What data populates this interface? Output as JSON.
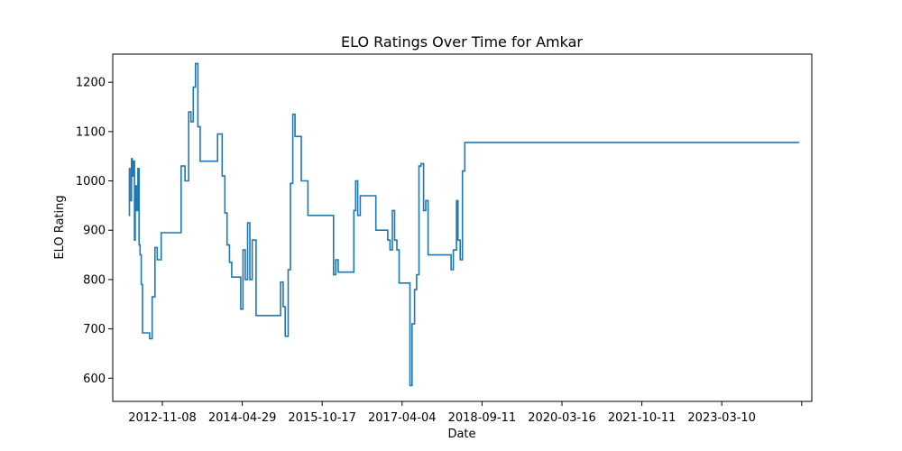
{
  "chart_data": {
    "type": "line",
    "title": "ELO Ratings Over Time for Amkar",
    "xlabel": "Date",
    "ylabel": "ELO Rating",
    "x_ticks": [
      "2012-11-08",
      "2014-04-29",
      "2015-10-17",
      "2017-04-04",
      "2018-09-11",
      "2020-03-16",
      "2021-10-11",
      "2023-03-10",
      ""
    ],
    "y_ticks": [
      600,
      700,
      800,
      900,
      1000,
      1100,
      1200
    ],
    "xlim": [
      "2012-02-10",
      "2024-12-25"
    ],
    "ylim": [
      553,
      1257
    ],
    "grid": false,
    "line_style": "steps",
    "line_color": "#1f77b4",
    "series": [
      {
        "x": [
          "2012-05-28",
          "2012-06-01",
          "2012-06-05",
          "2012-06-15",
          "2012-06-20",
          "2012-06-26",
          "2012-07-05",
          "2012-07-10",
          "2012-07-20",
          "2012-07-28",
          "2012-08-05",
          "2012-08-12",
          "2012-08-20",
          "2012-08-28",
          "2012-09-05",
          "2012-09-12",
          "2012-09-20",
          "2012-10-01",
          "2012-10-15",
          "2012-11-01",
          "2012-11-20",
          "2012-12-05",
          "2013-01-01",
          "2013-04-01",
          "2013-05-15",
          "2013-06-10",
          "2013-07-05",
          "2013-07-20",
          "2013-08-05",
          "2013-08-20",
          "2013-09-05",
          "2013-09-20",
          "2013-10-05",
          "2013-10-20",
          "2013-11-05",
          "2013-12-01",
          "2014-01-15",
          "2014-02-15",
          "2014-03-05",
          "2014-03-20",
          "2014-04-05",
          "2014-04-20",
          "2014-05-05",
          "2014-05-20",
          "2014-06-05",
          "2014-06-20",
          "2014-07-05",
          "2014-07-20",
          "2014-08-05",
          "2014-08-20",
          "2014-09-05",
          "2014-10-01",
          "2014-11-01",
          "2014-12-01",
          "2015-03-01",
          "2015-03-15",
          "2015-04-01",
          "2015-04-15",
          "2015-05-05",
          "2015-05-20",
          "2015-06-05",
          "2015-06-20",
          "2015-07-05",
          "2015-08-01",
          "2015-09-15",
          "2015-11-01",
          "2016-03-05",
          "2016-03-20",
          "2016-04-05",
          "2016-04-20",
          "2016-05-05",
          "2016-05-20",
          "2016-07-20",
          "2016-08-01",
          "2016-08-15",
          "2016-09-01",
          "2016-09-20",
          "2016-10-05",
          "2016-10-20",
          "2016-11-05",
          "2016-11-20",
          "2016-12-15",
          "2017-03-05",
          "2017-03-20",
          "2017-04-05",
          "2017-04-20",
          "2017-05-05",
          "2017-05-20",
          "2017-06-05",
          "2017-07-01",
          "2017-08-01",
          "2017-08-15",
          "2017-09-01",
          "2017-09-15",
          "2017-10-01",
          "2017-10-15",
          "2017-11-01",
          "2017-11-15",
          "2017-12-01",
          "2018-03-05",
          "2018-03-20",
          "2018-04-05",
          "2018-04-20",
          "2018-05-05",
          "2018-05-20",
          "2018-06-10",
          "2018-06-20",
          "2018-07-05",
          "2018-07-20",
          "2018-08-05",
          "2018-08-15",
          "2024-10-01"
        ],
        "y": [
          930,
          1025,
          960,
          1045,
          1010,
          1040,
          880,
          990,
          940,
          1025,
          870,
          850,
          790,
          692,
          692,
          692,
          692,
          692,
          680,
          765,
          865,
          840,
          895,
          895,
          1030,
          1000,
          1140,
          1120,
          1190,
          1238,
          1110,
          1040,
          1040,
          1040,
          1040,
          1040,
          1095,
          1010,
          935,
          870,
          835,
          805,
          805,
          805,
          805,
          740,
          860,
          800,
          915,
          800,
          880,
          727,
          727,
          727,
          727,
          795,
          745,
          685,
          820,
          995,
          1135,
          1090,
          1090,
          1000,
          930,
          930,
          810,
          840,
          815,
          815,
          815,
          815,
          940,
          1000,
          930,
          970,
          970,
          970,
          970,
          970,
          970,
          900,
          880,
          860,
          940,
          880,
          860,
          793,
          793,
          793,
          585,
          710,
          780,
          810,
          1030,
          1035,
          940,
          960,
          850,
          850,
          850,
          850,
          850,
          820,
          860,
          960,
          880,
          840,
          1020,
          1078,
          1078,
          1078
        ]
      }
    ]
  }
}
